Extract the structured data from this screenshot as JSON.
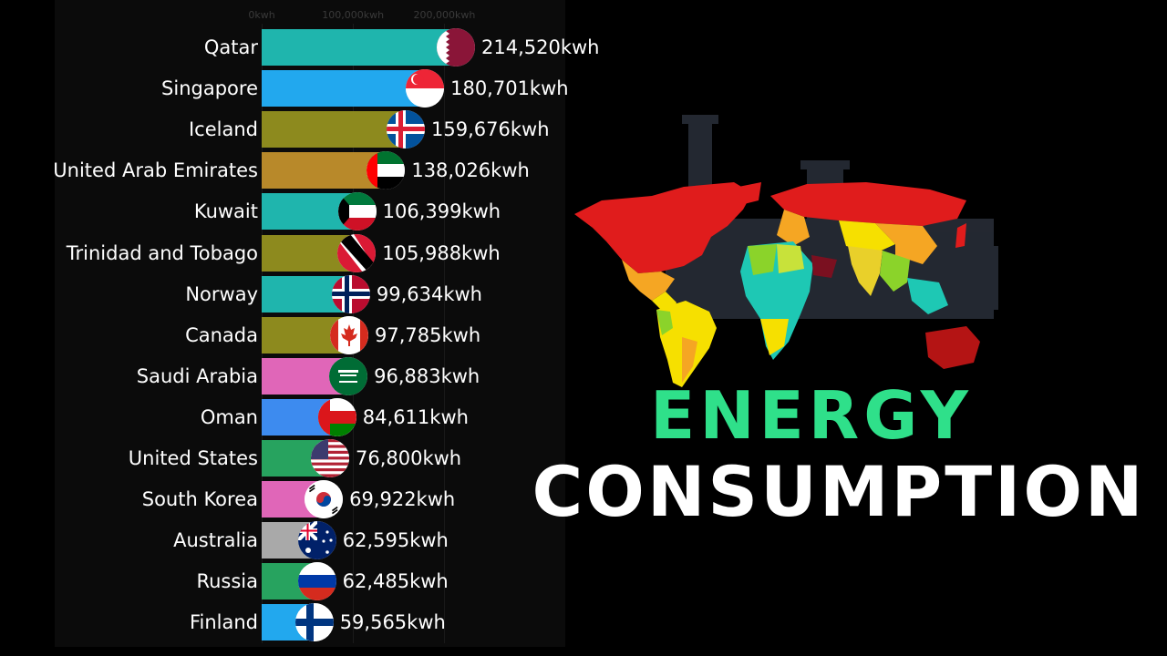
{
  "chart_data": {
    "type": "bar",
    "orientation": "horizontal",
    "x_tick_labels": [
      "0kwh",
      "100,000kwh",
      "200,000kwh"
    ],
    "x_ticks": [
      0,
      100000,
      200000
    ],
    "xlim": [
      0,
      214520
    ],
    "categories": [
      "Qatar",
      "Singapore",
      "Iceland",
      "United Arab Emirates",
      "Kuwait",
      "Trinidad and Tobago",
      "Norway",
      "Canada",
      "Saudi Arabia",
      "Oman",
      "United States",
      "South Korea",
      "Australia",
      "Russia",
      "Finland"
    ],
    "values": [
      214520,
      180701,
      159676,
      138026,
      106399,
      105988,
      99634,
      97785,
      96883,
      84611,
      76800,
      69922,
      62595,
      62485,
      59565
    ],
    "value_labels": [
      "214,520kwh",
      "180,701kwh",
      "159,676kwh",
      "138,026kwh",
      "106,399kwh",
      "105,988kwh",
      "99,634kwh",
      "97,785kwh",
      "96,883kwh",
      "84,611kwh",
      "76,800kwh",
      "69,922kwh",
      "62,595kwh",
      "62,485kwh",
      "59,565kwh"
    ],
    "bar_colors": [
      "#1fb5ad",
      "#22a8ee",
      "#8d8a1e",
      "#b8892a",
      "#1fb5ad",
      "#8d8a1e",
      "#1fb5ad",
      "#8d8a1e",
      "#e066b8",
      "#3d8bef",
      "#27a35f",
      "#e066b8",
      "#a9a9a9",
      "#27a35f",
      "#22a8ee"
    ],
    "flags": [
      "qatar-flag-icon",
      "singapore-flag-icon",
      "iceland-flag-icon",
      "uae-flag-icon",
      "kuwait-flag-icon",
      "trinidad-flag-icon",
      "norway-flag-icon",
      "canada-flag-icon",
      "saudi-flag-icon",
      "oman-flag-icon",
      "usa-flag-icon",
      "south-korea-flag-icon",
      "australia-flag-icon",
      "russia-flag-icon",
      "finland-flag-icon"
    ],
    "grid": false
  },
  "headline": {
    "line1": "ENERGY",
    "line2": "CONSUMPTION",
    "line1_color": "#2fe08a",
    "line2_color": "#ffffff"
  },
  "background_color": "#000000"
}
